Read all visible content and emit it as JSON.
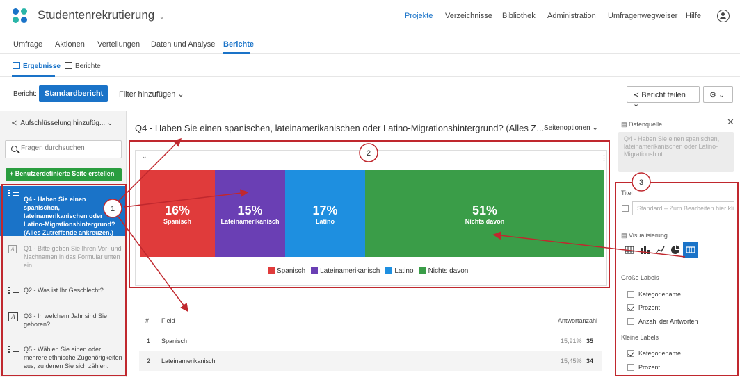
{
  "header": {
    "app_title": "Studentenrekrutierung",
    "nav": [
      "Projekte",
      "Verzeichnisse",
      "Bibliothek",
      "Administration",
      "Umfragenwegweiser",
      "Hilfe"
    ]
  },
  "subnav": [
    "Umfrage",
    "Aktionen",
    "Verteilungen",
    "Daten und Analyse",
    "Berichte"
  ],
  "thirdnav": [
    "Ergebnisse",
    "Berichte"
  ],
  "toolbar": {
    "report_label": "Bericht:",
    "report_value": "Standardbericht",
    "filter": "Filter hinzufügen",
    "share": "Bericht teilen"
  },
  "left": {
    "breakdown": "Aufschlüsselung hinzufüg...",
    "search_placeholder": "Fragen durchsuchen",
    "add_page": "Benutzerdefinierte Seite erstellen",
    "questions": [
      "Q4 - Haben Sie einen spanischen, lateinamerikanischen oder Latino-Migrationshintergrund? (Alles Zutreffende ankreuzen.)",
      "Q1 - Bitte geben Sie Ihren Vor- und Nachnamen in das Formular unten ein.",
      "Q2 - Was ist Ihr Geschlecht?",
      "Q3 - In welchem Jahr sind Sie geboren?",
      "Q5 - Wählen Sie einen oder mehrere ethnische Zugehörigkeiten aus, zu denen Sie sich zählen:"
    ]
  },
  "main": {
    "title": "Q4 - Haben Sie einen spanischen, lateinamerikanischen oder Latino-Migrationshintergrund? (Alles Z...",
    "page_options": "Seitenoptionen",
    "table": {
      "col_num": "#",
      "col_field": "Field",
      "col_count": "Antwortanzahl",
      "rows": [
        {
          "num": "1",
          "field": "Spanisch",
          "pct": "15,91%",
          "count": "35"
        },
        {
          "num": "2",
          "field": "Lateinamerikanisch",
          "pct": "15,45%",
          "count": "34"
        }
      ]
    }
  },
  "chart_data": {
    "type": "bar",
    "orientation": "stacked-horizontal",
    "categories": [
      "Spanisch",
      "Lateinamerikanisch",
      "Latino",
      "Nichts davon"
    ],
    "values": [
      16,
      15,
      17,
      51
    ],
    "labels": [
      "16%",
      "15%",
      "17%",
      "51%"
    ],
    "colors": [
      "#e03b3b",
      "#6a3fb4",
      "#1e8fe0",
      "#3a9d48"
    ],
    "legend_position": "bottom"
  },
  "right": {
    "datasource_label": "Datenquelle",
    "datasource_value": "Q4 - Haben Sie einen spanischen, lateinamerikanischen oder Latino-Migrationshint...",
    "title_label": "Titel",
    "title_placeholder": "Standard – Zum Bearbeiten hier klicken",
    "viz_label": "Visualisierung",
    "big_labels": "Große Labels",
    "big_options": [
      {
        "label": "Kategoriename",
        "checked": false
      },
      {
        "label": "Prozent",
        "checked": true
      },
      {
        "label": "Anzahl der Antworten",
        "checked": false
      }
    ],
    "small_labels": "Kleine Labels",
    "small_options": [
      {
        "label": "Kategoriename",
        "checked": true
      },
      {
        "label": "Prozent",
        "checked": false
      }
    ]
  },
  "annotations": [
    "1",
    "2",
    "3"
  ]
}
